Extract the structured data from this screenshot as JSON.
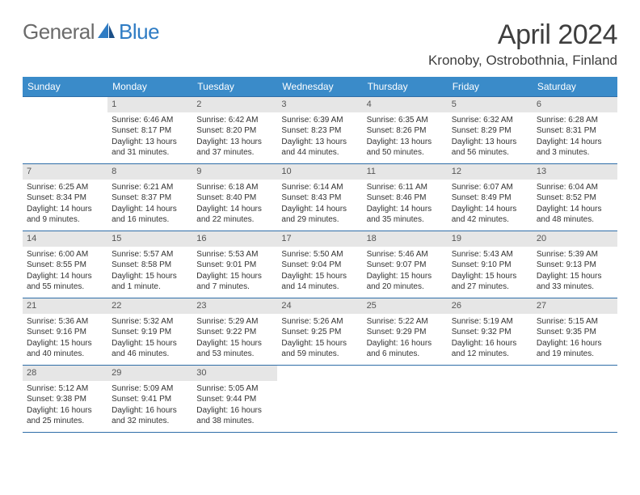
{
  "logo": {
    "general": "General",
    "blue": "Blue"
  },
  "title": "April 2024",
  "location": "Kronoby, Ostrobothnia, Finland",
  "colors": {
    "header_bg": "#3a8bc9",
    "header_text": "#ffffff",
    "day_number_bg": "#e6e6e6",
    "week_border": "#2f6ea8",
    "body_text": "#333333",
    "logo_gray": "#6b6b6b",
    "logo_blue": "#2f7cc4"
  },
  "weekdays": [
    "Sunday",
    "Monday",
    "Tuesday",
    "Wednesday",
    "Thursday",
    "Friday",
    "Saturday"
  ],
  "weeks": [
    [
      {
        "empty": true
      },
      {
        "day": "1",
        "sunrise": "Sunrise: 6:46 AM",
        "sunset": "Sunset: 8:17 PM",
        "daylight1": "Daylight: 13 hours",
        "daylight2": "and 31 minutes."
      },
      {
        "day": "2",
        "sunrise": "Sunrise: 6:42 AM",
        "sunset": "Sunset: 8:20 PM",
        "daylight1": "Daylight: 13 hours",
        "daylight2": "and 37 minutes."
      },
      {
        "day": "3",
        "sunrise": "Sunrise: 6:39 AM",
        "sunset": "Sunset: 8:23 PM",
        "daylight1": "Daylight: 13 hours",
        "daylight2": "and 44 minutes."
      },
      {
        "day": "4",
        "sunrise": "Sunrise: 6:35 AM",
        "sunset": "Sunset: 8:26 PM",
        "daylight1": "Daylight: 13 hours",
        "daylight2": "and 50 minutes."
      },
      {
        "day": "5",
        "sunrise": "Sunrise: 6:32 AM",
        "sunset": "Sunset: 8:29 PM",
        "daylight1": "Daylight: 13 hours",
        "daylight2": "and 56 minutes."
      },
      {
        "day": "6",
        "sunrise": "Sunrise: 6:28 AM",
        "sunset": "Sunset: 8:31 PM",
        "daylight1": "Daylight: 14 hours",
        "daylight2": "and 3 minutes."
      }
    ],
    [
      {
        "day": "7",
        "sunrise": "Sunrise: 6:25 AM",
        "sunset": "Sunset: 8:34 PM",
        "daylight1": "Daylight: 14 hours",
        "daylight2": "and 9 minutes."
      },
      {
        "day": "8",
        "sunrise": "Sunrise: 6:21 AM",
        "sunset": "Sunset: 8:37 PM",
        "daylight1": "Daylight: 14 hours",
        "daylight2": "and 16 minutes."
      },
      {
        "day": "9",
        "sunrise": "Sunrise: 6:18 AM",
        "sunset": "Sunset: 8:40 PM",
        "daylight1": "Daylight: 14 hours",
        "daylight2": "and 22 minutes."
      },
      {
        "day": "10",
        "sunrise": "Sunrise: 6:14 AM",
        "sunset": "Sunset: 8:43 PM",
        "daylight1": "Daylight: 14 hours",
        "daylight2": "and 29 minutes."
      },
      {
        "day": "11",
        "sunrise": "Sunrise: 6:11 AM",
        "sunset": "Sunset: 8:46 PM",
        "daylight1": "Daylight: 14 hours",
        "daylight2": "and 35 minutes."
      },
      {
        "day": "12",
        "sunrise": "Sunrise: 6:07 AM",
        "sunset": "Sunset: 8:49 PM",
        "daylight1": "Daylight: 14 hours",
        "daylight2": "and 42 minutes."
      },
      {
        "day": "13",
        "sunrise": "Sunrise: 6:04 AM",
        "sunset": "Sunset: 8:52 PM",
        "daylight1": "Daylight: 14 hours",
        "daylight2": "and 48 minutes."
      }
    ],
    [
      {
        "day": "14",
        "sunrise": "Sunrise: 6:00 AM",
        "sunset": "Sunset: 8:55 PM",
        "daylight1": "Daylight: 14 hours",
        "daylight2": "and 55 minutes."
      },
      {
        "day": "15",
        "sunrise": "Sunrise: 5:57 AM",
        "sunset": "Sunset: 8:58 PM",
        "daylight1": "Daylight: 15 hours",
        "daylight2": "and 1 minute."
      },
      {
        "day": "16",
        "sunrise": "Sunrise: 5:53 AM",
        "sunset": "Sunset: 9:01 PM",
        "daylight1": "Daylight: 15 hours",
        "daylight2": "and 7 minutes."
      },
      {
        "day": "17",
        "sunrise": "Sunrise: 5:50 AM",
        "sunset": "Sunset: 9:04 PM",
        "daylight1": "Daylight: 15 hours",
        "daylight2": "and 14 minutes."
      },
      {
        "day": "18",
        "sunrise": "Sunrise: 5:46 AM",
        "sunset": "Sunset: 9:07 PM",
        "daylight1": "Daylight: 15 hours",
        "daylight2": "and 20 minutes."
      },
      {
        "day": "19",
        "sunrise": "Sunrise: 5:43 AM",
        "sunset": "Sunset: 9:10 PM",
        "daylight1": "Daylight: 15 hours",
        "daylight2": "and 27 minutes."
      },
      {
        "day": "20",
        "sunrise": "Sunrise: 5:39 AM",
        "sunset": "Sunset: 9:13 PM",
        "daylight1": "Daylight: 15 hours",
        "daylight2": "and 33 minutes."
      }
    ],
    [
      {
        "day": "21",
        "sunrise": "Sunrise: 5:36 AM",
        "sunset": "Sunset: 9:16 PM",
        "daylight1": "Daylight: 15 hours",
        "daylight2": "and 40 minutes."
      },
      {
        "day": "22",
        "sunrise": "Sunrise: 5:32 AM",
        "sunset": "Sunset: 9:19 PM",
        "daylight1": "Daylight: 15 hours",
        "daylight2": "and 46 minutes."
      },
      {
        "day": "23",
        "sunrise": "Sunrise: 5:29 AM",
        "sunset": "Sunset: 9:22 PM",
        "daylight1": "Daylight: 15 hours",
        "daylight2": "and 53 minutes."
      },
      {
        "day": "24",
        "sunrise": "Sunrise: 5:26 AM",
        "sunset": "Sunset: 9:25 PM",
        "daylight1": "Daylight: 15 hours",
        "daylight2": "and 59 minutes."
      },
      {
        "day": "25",
        "sunrise": "Sunrise: 5:22 AM",
        "sunset": "Sunset: 9:29 PM",
        "daylight1": "Daylight: 16 hours",
        "daylight2": "and 6 minutes."
      },
      {
        "day": "26",
        "sunrise": "Sunrise: 5:19 AM",
        "sunset": "Sunset: 9:32 PM",
        "daylight1": "Daylight: 16 hours",
        "daylight2": "and 12 minutes."
      },
      {
        "day": "27",
        "sunrise": "Sunrise: 5:15 AM",
        "sunset": "Sunset: 9:35 PM",
        "daylight1": "Daylight: 16 hours",
        "daylight2": "and 19 minutes."
      }
    ],
    [
      {
        "day": "28",
        "sunrise": "Sunrise: 5:12 AM",
        "sunset": "Sunset: 9:38 PM",
        "daylight1": "Daylight: 16 hours",
        "daylight2": "and 25 minutes."
      },
      {
        "day": "29",
        "sunrise": "Sunrise: 5:09 AM",
        "sunset": "Sunset: 9:41 PM",
        "daylight1": "Daylight: 16 hours",
        "daylight2": "and 32 minutes."
      },
      {
        "day": "30",
        "sunrise": "Sunrise: 5:05 AM",
        "sunset": "Sunset: 9:44 PM",
        "daylight1": "Daylight: 16 hours",
        "daylight2": "and 38 minutes."
      },
      {
        "empty": true
      },
      {
        "empty": true
      },
      {
        "empty": true
      },
      {
        "empty": true
      }
    ]
  ]
}
